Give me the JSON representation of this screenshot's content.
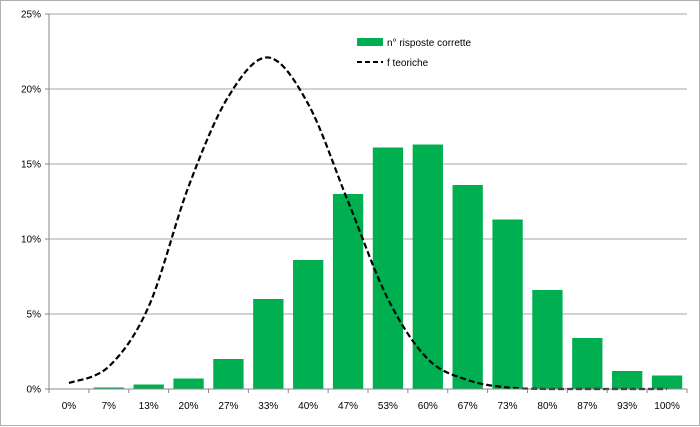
{
  "chart_data": {
    "type": "bar",
    "categories": [
      "0%",
      "7%",
      "13%",
      "20%",
      "27%",
      "33%",
      "40%",
      "47%",
      "53%",
      "60%",
      "67%",
      "73%",
      "80%",
      "87%",
      "93%",
      "100%"
    ],
    "series": [
      {
        "name": "n° risposte corrette",
        "type": "bar",
        "color": "#00b050",
        "values": [
          0.0,
          0.1,
          0.3,
          0.7,
          2.0,
          6.0,
          8.6,
          13.0,
          16.1,
          16.3,
          13.6,
          11.3,
          6.6,
          3.4,
          1.2,
          0.9
        ]
      },
      {
        "name": "f teoriche",
        "type": "line",
        "style": "dashed",
        "color": "#000000",
        "values": [
          0.4,
          1.5,
          5.5,
          13.5,
          19.5,
          22.1,
          19.0,
          12.5,
          6.0,
          2.0,
          0.6,
          0.1,
          0.0,
          0.0,
          0.0,
          0.0
        ]
      }
    ],
    "ylim": [
      0,
      25
    ],
    "yticks": [
      "0%",
      "5%",
      "10%",
      "15%",
      "20%",
      "25%"
    ],
    "ytick_values": [
      0,
      5,
      10,
      15,
      20,
      25
    ],
    "grid": true,
    "legend_position": "top-center"
  }
}
